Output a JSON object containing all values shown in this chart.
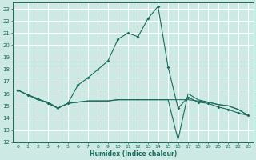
{
  "title": "",
  "xlabel": "Humidex (Indice chaleur)",
  "bg_color": "#cce9e4",
  "line_color": "#1a6b5e",
  "grid_color": "#ffffff",
  "xlim": [
    -0.5,
    23.5
  ],
  "ylim": [
    12,
    23.5
  ],
  "xticks": [
    0,
    1,
    2,
    3,
    4,
    5,
    6,
    7,
    8,
    9,
    10,
    11,
    12,
    13,
    14,
    15,
    16,
    17,
    18,
    19,
    20,
    21,
    22,
    23
  ],
  "yticks": [
    12,
    13,
    14,
    15,
    16,
    17,
    18,
    19,
    20,
    21,
    22,
    23
  ],
  "series1_x": [
    0,
    1,
    2,
    3,
    4,
    5,
    6,
    7,
    8,
    9,
    10,
    11,
    12,
    13,
    14,
    15,
    16,
    17,
    18,
    19,
    20,
    21,
    22,
    23
  ],
  "series1_y": [
    16.3,
    15.9,
    15.6,
    15.2,
    14.8,
    15.2,
    16.7,
    17.3,
    18.0,
    18.7,
    20.5,
    21.0,
    20.7,
    22.2,
    23.2,
    18.2,
    14.8,
    15.7,
    15.3,
    15.2,
    14.9,
    14.7,
    14.4,
    14.2
  ],
  "series2_x": [
    0,
    1,
    2,
    3,
    4,
    5,
    6,
    7,
    8,
    9,
    10,
    11,
    12,
    13,
    14,
    15,
    16,
    17,
    18,
    19,
    20,
    21,
    22,
    23
  ],
  "series2_y": [
    16.3,
    15.9,
    15.5,
    15.3,
    14.8,
    15.2,
    15.3,
    15.4,
    15.4,
    15.4,
    15.5,
    15.5,
    15.5,
    15.5,
    15.5,
    15.5,
    15.5,
    15.5,
    15.4,
    15.3,
    15.1,
    15.0,
    14.7,
    14.2
  ],
  "series3_x": [
    0,
    1,
    2,
    3,
    4,
    5,
    6,
    7,
    8,
    9,
    10,
    11,
    12,
    13,
    14,
    15,
    16,
    17,
    18,
    19,
    20,
    21,
    22,
    23
  ],
  "series3_y": [
    16.3,
    15.9,
    15.5,
    15.3,
    14.8,
    15.2,
    15.3,
    15.4,
    15.4,
    15.4,
    15.5,
    15.5,
    15.5,
    15.5,
    15.5,
    15.5,
    12.2,
    16.0,
    15.5,
    15.3,
    15.1,
    15.0,
    14.7,
    14.2
  ]
}
